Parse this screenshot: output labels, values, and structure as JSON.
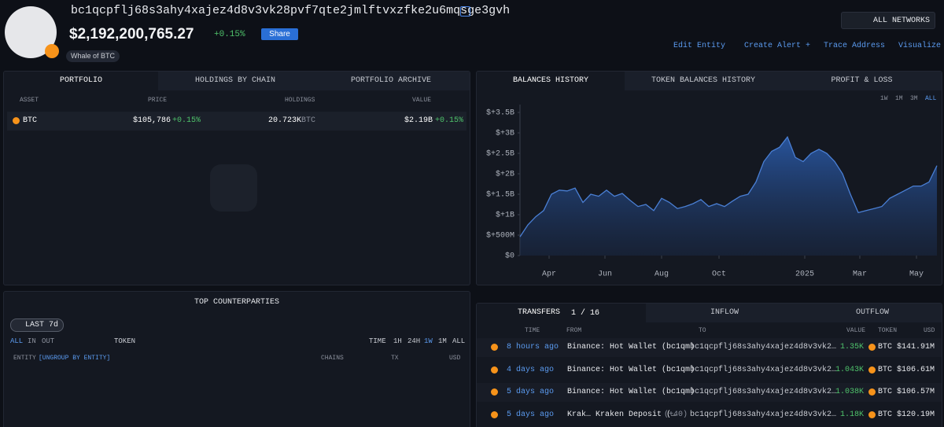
{
  "header": {
    "address": "bc1qcpflj68s3ahy4xajez4d8v3vk28pvf7qte2jmlftvxzfke2u6mqsge3gvh",
    "balance": "$2,192,200,765.27",
    "change": "+0.15%",
    "share": "Share",
    "tag": "Whale of",
    "tag_token": "BTC",
    "networks": "ALL NETWORKS",
    "actions": [
      "Edit Entity",
      "Create Alert +",
      "Trace Address",
      "Visualize"
    ]
  },
  "portfolio": {
    "tabs": [
      "PORTFOLIO",
      "HOLDINGS BY CHAIN",
      "PORTFOLIO ARCHIVE"
    ],
    "columns": [
      "ASSET",
      "PRICE",
      "HOLDINGS",
      "VALUE"
    ],
    "rows": [
      {
        "asset": "BTC",
        "price": "$105,786",
        "price_change": "+0.15%",
        "holdings": "20.723K",
        "holdings_unit": "BTC",
        "value": "$2.19B",
        "value_change": "+0.15%"
      }
    ]
  },
  "balances": {
    "tabs": [
      "BALANCES HISTORY",
      "TOKEN BALANCES HISTORY",
      "PROFIT & LOSS"
    ],
    "ranges": [
      "1W",
      "1M",
      "3M",
      "ALL"
    ],
    "chart": {
      "type": "area",
      "color": "#4a7fd4",
      "values": [
        0.46,
        0.75,
        0.95,
        1.1,
        1.5,
        1.6,
        1.58,
        1.65,
        1.3,
        1.5,
        1.45,
        1.6,
        1.45,
        1.52,
        1.35,
        1.2,
        1.25,
        1.1,
        1.4,
        1.3,
        1.15,
        1.2,
        1.27,
        1.37,
        1.2,
        1.27,
        1.2,
        1.33,
        1.45,
        1.5,
        1.8,
        2.3,
        2.55,
        2.65,
        2.9,
        2.4,
        2.3,
        2.5,
        2.6,
        2.5,
        2.3,
        2.0,
        1.5,
        1.05,
        1.1,
        1.15,
        1.2,
        1.4,
        1.5,
        1.6,
        1.7,
        1.7,
        1.8,
        2.2
      ],
      "xlim": [
        0,
        53
      ],
      "xticks": [
        {
          "value": 3.7,
          "label": "Apr"
        },
        {
          "value": 10.8,
          "label": "Jun"
        },
        {
          "value": 18,
          "label": "Aug"
        },
        {
          "value": 25.3,
          "label": "Oct"
        },
        {
          "value": 36.2,
          "label": "2025"
        },
        {
          "value": 43.2,
          "label": "Mar"
        },
        {
          "value": 50.4,
          "label": "May"
        }
      ],
      "ylim": [
        0,
        3.5
      ],
      "yticks": [
        {
          "value": 0,
          "label": "$0"
        },
        {
          "value": 0.5,
          "label": "$+500M"
        },
        {
          "value": 1,
          "label": "$+1B"
        },
        {
          "value": 1.5,
          "label": "$+1.5B"
        },
        {
          "value": 2,
          "label": "$+2B"
        },
        {
          "value": 2.5,
          "label": "$+2.5B"
        },
        {
          "value": 3,
          "label": "$+3B"
        },
        {
          "value": 3.5,
          "label": "$+3.5B"
        }
      ]
    }
  },
  "counterparties": {
    "title": "TOP COUNTERPARTIES",
    "filter": "LAST 7d",
    "flow": [
      "ALL",
      "IN",
      "OUT"
    ],
    "token": "TOKEN",
    "time": "TIME",
    "ranges": [
      "1H",
      "24H",
      "1W",
      "1M",
      "ALL"
    ],
    "columns": [
      "ENTITY",
      "[UNGROUP BY ENTITY]",
      "CHAINS",
      "TX",
      "USD"
    ]
  },
  "transfers": {
    "tabs": [
      "TRANSFERS",
      "INFLOW",
      "OUTFLOW"
    ],
    "page": "1 / 16",
    "columns": [
      "TIME",
      "FROM",
      "TO",
      "VALUE",
      "TOKEN",
      "USD"
    ],
    "rows": [
      {
        "time": "8 hours ago",
        "from": "Binance: Hot Wallet (bc1qm)",
        "to": "bc1qcpflj68s3ahy4xajez4d8v3vk2…",
        "value": "1.35K",
        "token": "BTC",
        "usd": "$141.91M"
      },
      {
        "time": "4 days ago",
        "from": "Binance: Hot Wallet (bc1qm)",
        "to": "bc1qcpflj68s3ahy4xajez4d8v3vk2…",
        "value": "1.043K",
        "token": "BTC",
        "usd": "$106.61M"
      },
      {
        "time": "5 days ago",
        "from": "Binance: Hot Wallet (bc1qm)",
        "to": "bc1qcpflj68s3ahy4xajez4d8v3vk2…",
        "value": "1.038K",
        "token": "BTC",
        "usd": "$106.57M"
      },
      {
        "time": "5 days ago",
        "from": "Krak… Kraken Deposit (…",
        "from_extra": "(+40)",
        "to": "bc1qcpflj68s3ahy4xajez4d8v3vk2…",
        "value": "1.18K",
        "token": "BTC",
        "usd": "$120.19M"
      }
    ]
  }
}
